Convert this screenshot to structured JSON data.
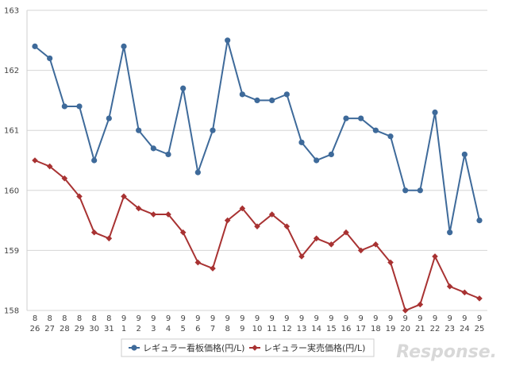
{
  "chart_data": {
    "type": "line",
    "title": "",
    "xlabel": "",
    "ylabel": "",
    "ylim": [
      158,
      163
    ],
    "yticks": [
      158,
      159,
      160,
      161,
      162,
      163
    ],
    "grid": true,
    "legend_position": "bottom",
    "x_months": [
      "8",
      "8",
      "8",
      "8",
      "8",
      "8",
      "9",
      "9",
      "9",
      "9",
      "9",
      "9",
      "9",
      "9",
      "9",
      "9",
      "9",
      "9",
      "9",
      "9",
      "9",
      "9",
      "9",
      "9",
      "9",
      "9",
      "9",
      "9",
      "9",
      "9",
      "9"
    ],
    "x_days": [
      "26",
      "27",
      "28",
      "29",
      "30",
      "31",
      "1",
      "2",
      "3",
      "4",
      "5",
      "6",
      "7",
      "8",
      "9",
      "10",
      "11",
      "12",
      "13",
      "14",
      "15",
      "16",
      "17",
      "18",
      "19",
      "20",
      "21",
      "22",
      "23",
      "24",
      "25"
    ],
    "series": [
      {
        "name": "レギュラー看板価格(円/L)",
        "color": "#3e6a9a",
        "marker": "circle",
        "values": [
          162.4,
          162.2,
          161.4,
          161.4,
          160.5,
          161.2,
          162.4,
          161.0,
          160.7,
          160.6,
          161.7,
          160.3,
          161.0,
          162.5,
          161.6,
          161.5,
          161.5,
          161.6,
          160.8,
          160.5,
          160.6,
          161.2,
          161.2,
          161.0,
          160.9,
          160.0,
          160.0,
          161.3,
          159.3,
          160.6,
          159.5
        ]
      },
      {
        "name": "レギュラー実売価格(円/L)",
        "color": "#a83232",
        "marker": "diamond",
        "values": [
          160.5,
          160.4,
          160.2,
          159.9,
          159.3,
          159.2,
          159.9,
          159.7,
          159.6,
          159.6,
          159.3,
          158.8,
          158.7,
          159.5,
          159.7,
          159.4,
          159.6,
          159.4,
          158.9,
          159.2,
          159.1,
          159.3,
          159.0,
          159.1,
          158.8,
          158.0,
          158.1,
          158.9,
          158.4,
          158.3,
          158.2
        ]
      }
    ]
  },
  "watermark": "Response."
}
